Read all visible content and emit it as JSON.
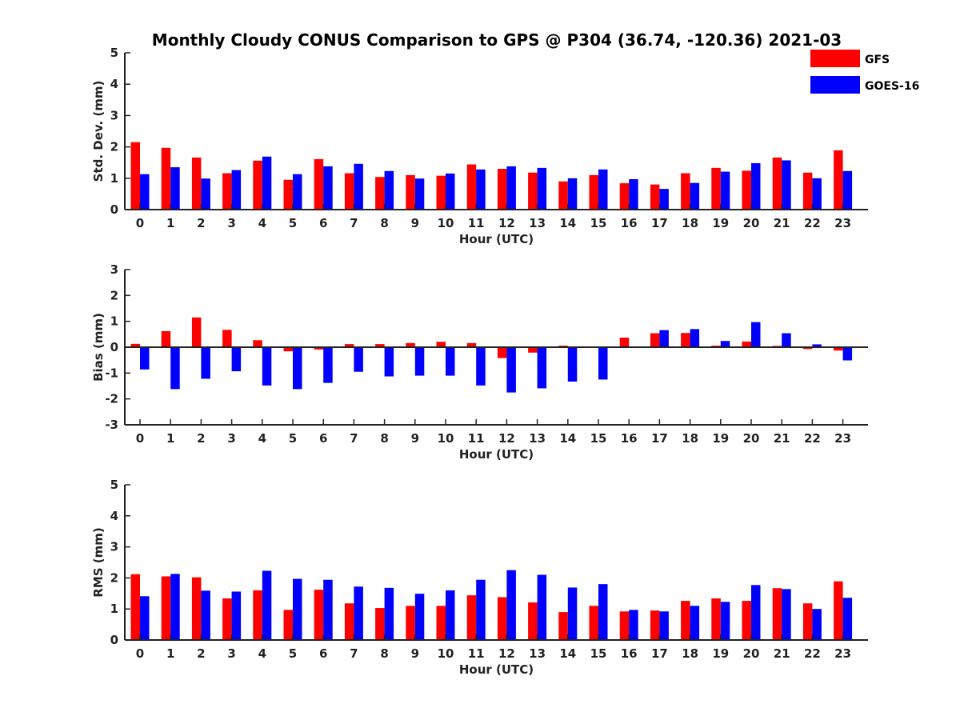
{
  "chart_data": [
    {
      "type": "bar",
      "title": "Monthly Cloudy CONUS Comparison to GPS @ P304 (36.74, -120.36) 2021-03",
      "xlabel": "Hour (UTC)",
      "ylabel": "Std. Dev. (mm)",
      "ylim": [
        0,
        5
      ],
      "yticks": [
        "0",
        "1",
        "2",
        "3",
        "4",
        "5"
      ],
      "categories": [
        "0",
        "1",
        "2",
        "3",
        "4",
        "5",
        "6",
        "7",
        "8",
        "9",
        "10",
        "11",
        "12",
        "13",
        "14",
        "15",
        "16",
        "17",
        "18",
        "19",
        "20",
        "21",
        "22",
        "23"
      ],
      "series": [
        {
          "name": "GFS",
          "color": "#ff0000",
          "values": [
            2.15,
            1.97,
            1.66,
            1.16,
            1.56,
            0.95,
            1.61,
            1.16,
            1.04,
            1.1,
            1.08,
            1.44,
            1.3,
            1.18,
            0.9,
            1.1,
            0.84,
            0.8,
            1.16,
            1.33,
            1.24,
            1.66,
            1.18,
            1.89
          ]
        },
        {
          "name": "GOES-16",
          "color": "#0000ff",
          "values": [
            1.13,
            1.35,
            0.99,
            1.26,
            1.69,
            1.13,
            1.38,
            1.46,
            1.23,
            0.99,
            1.15,
            1.28,
            1.38,
            1.33,
            1.0,
            1.28,
            0.97,
            0.66,
            0.85,
            1.21,
            1.48,
            1.57,
            1.0,
            1.23
          ]
        }
      ]
    },
    {
      "type": "bar",
      "xlabel": "Hour (UTC)",
      "ylabel": "Bias (mm)",
      "ylim": [
        -3,
        3
      ],
      "yticks": [
        "-3",
        "-2",
        "-1",
        "0",
        "1",
        "2",
        "3"
      ],
      "categories": [
        "0",
        "1",
        "2",
        "3",
        "4",
        "5",
        "6",
        "7",
        "8",
        "9",
        "10",
        "11",
        "12",
        "13",
        "14",
        "15",
        "16",
        "17",
        "18",
        "19",
        "20",
        "21",
        "22",
        "23"
      ],
      "series": [
        {
          "name": "GFS",
          "color": "#ff0000",
          "values": [
            0.13,
            0.62,
            1.15,
            0.67,
            0.27,
            -0.16,
            -0.09,
            0.12,
            0.12,
            0.16,
            0.21,
            0.16,
            -0.42,
            -0.21,
            0.06,
            -0.03,
            0.37,
            0.54,
            0.55,
            0.06,
            0.22,
            0.05,
            -0.07,
            -0.13
          ]
        },
        {
          "name": "GOES-16",
          "color": "#0000ff",
          "values": [
            -0.86,
            -1.62,
            -1.22,
            -0.93,
            -1.48,
            -1.62,
            -1.38,
            -0.95,
            -1.13,
            -1.1,
            -1.1,
            -1.48,
            -1.75,
            -1.59,
            -1.33,
            -1.25,
            0.0,
            0.66,
            0.7,
            0.24,
            0.97,
            0.54,
            0.11,
            -0.51
          ]
        }
      ]
    },
    {
      "type": "bar",
      "xlabel": "Hour (UTC)",
      "ylabel": "RMS (mm)",
      "ylim": [
        0,
        5
      ],
      "yticks": [
        "0",
        "1",
        "2",
        "3",
        "4",
        "5"
      ],
      "categories": [
        "0",
        "1",
        "2",
        "3",
        "4",
        "5",
        "6",
        "7",
        "8",
        "9",
        "10",
        "11",
        "12",
        "13",
        "14",
        "15",
        "16",
        "17",
        "18",
        "19",
        "20",
        "21",
        "22",
        "23"
      ],
      "series": [
        {
          "name": "GFS",
          "color": "#ff0000",
          "values": [
            2.12,
            2.05,
            2.02,
            1.34,
            1.6,
            0.97,
            1.62,
            1.18,
            1.03,
            1.1,
            1.1,
            1.44,
            1.38,
            1.21,
            0.9,
            1.1,
            0.92,
            0.95,
            1.26,
            1.34,
            1.26,
            1.67,
            1.18,
            1.89
          ]
        },
        {
          "name": "GOES-16",
          "color": "#0000ff",
          "values": [
            1.41,
            2.13,
            1.59,
            1.56,
            2.23,
            1.97,
            1.94,
            1.72,
            1.68,
            1.49,
            1.6,
            1.94,
            2.25,
            2.1,
            1.69,
            1.8,
            0.97,
            0.92,
            1.1,
            1.23,
            1.77,
            1.64,
            1.0,
            1.36
          ]
        }
      ]
    }
  ],
  "legend": {
    "items": [
      {
        "label": "GFS",
        "color": "#ff0000"
      },
      {
        "label": "GOES-16",
        "color": "#0000ff"
      }
    ]
  }
}
